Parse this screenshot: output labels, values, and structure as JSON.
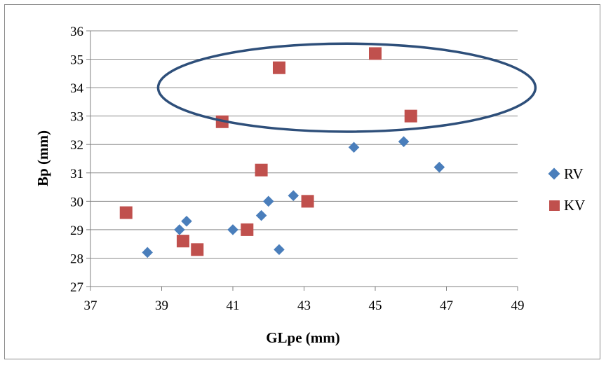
{
  "chart_data": {
    "type": "scatter",
    "xlabel": "GLpe (mm)",
    "ylabel": "Bp (mm)",
    "xlim": [
      37,
      49
    ],
    "ylim": [
      27,
      36
    ],
    "xticks": [
      37,
      39,
      41,
      43,
      45,
      47,
      49
    ],
    "yticks": [
      27,
      28,
      29,
      30,
      31,
      32,
      33,
      34,
      35,
      36
    ],
    "grid": "horizontal",
    "legend": "right",
    "series": [
      {
        "name": "RV",
        "marker": "diamond",
        "color": "#4a7ebb",
        "points": [
          [
            38.6,
            28.2
          ],
          [
            39.5,
            29.0
          ],
          [
            39.7,
            29.3
          ],
          [
            41.0,
            29.0
          ],
          [
            41.8,
            29.5
          ],
          [
            42.0,
            30.0
          ],
          [
            42.3,
            28.3
          ],
          [
            42.7,
            30.2
          ],
          [
            44.4,
            31.9
          ],
          [
            45.8,
            32.1
          ],
          [
            46.8,
            31.2
          ]
        ]
      },
      {
        "name": "KV",
        "marker": "square",
        "color": "#c0504d",
        "points": [
          [
            38.0,
            29.6
          ],
          [
            39.6,
            28.6
          ],
          [
            40.0,
            28.3
          ],
          [
            40.7,
            32.8
          ],
          [
            41.4,
            29.0
          ],
          [
            41.8,
            31.1
          ],
          [
            42.3,
            34.7
          ],
          [
            43.1,
            30.0
          ],
          [
            45.0,
            35.2
          ],
          [
            46.0,
            33.0
          ]
        ]
      }
    ],
    "annotations": [
      {
        "type": "ellipse",
        "color": "#2e4f7a",
        "center": [
          44.2,
          34.0
        ],
        "radius_x": 5.3,
        "radius_y": 1.55
      }
    ]
  }
}
